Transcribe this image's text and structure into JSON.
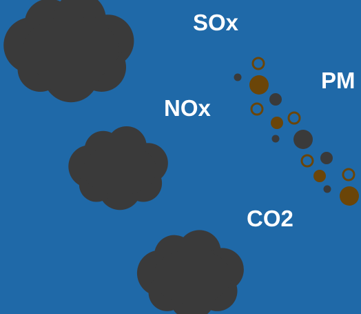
{
  "labels": {
    "sox": "SOx",
    "nox": "NOx",
    "pm": "PM",
    "co2": "CO2"
  },
  "colors": {
    "background": "#1f69a8",
    "cloud": "#3a3a3a",
    "particle_dark": "#3a3a3a",
    "particle_brown": "#6b4508",
    "label_text": "#ffffff"
  },
  "icons": {
    "cloud": "cloud-icon",
    "particle": "particle-icon"
  }
}
